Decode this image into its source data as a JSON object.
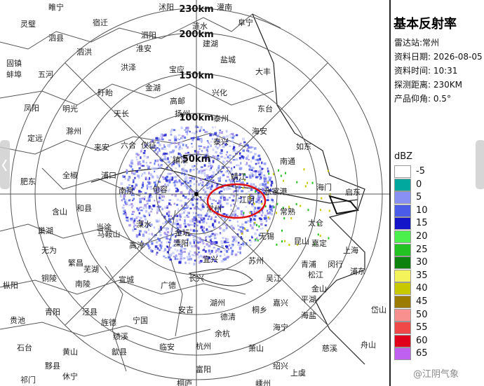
{
  "ring_labels": [
    "50km",
    "100km",
    "150km",
    "200km",
    "230km"
  ],
  "places": [
    "睢宁",
    "沭阳",
    "灌南",
    "灵璧",
    "宿迁",
    "泗阳",
    "涟水",
    "阜宁",
    "泗县",
    "泗洪",
    "淮安",
    "建湖",
    "盐城",
    "固镇",
    "蚌埠",
    "五河",
    "洪泽",
    "宝应",
    "大丰",
    "盱眙",
    "金湖",
    "兴化",
    "凤阳",
    "明光",
    "高邮",
    "东台",
    "天长",
    "扬州",
    "泰州",
    "海安",
    "滁州",
    "定远",
    "来安",
    "六合",
    "仪征",
    "泰兴",
    "如东",
    "镇江",
    "全椒",
    "浦口",
    "南通",
    "肥东",
    "靖江",
    "南京",
    "句容",
    "张家港",
    "海门",
    "启东",
    "江阴",
    "常州",
    "常熟",
    "和县",
    "含山",
    "当涂",
    "马鞍山",
    "溧水",
    "巢湖",
    "金坛",
    "太仓",
    "无锡",
    "嘉定",
    "昆山",
    "上海",
    "溧阳",
    "高淳",
    "无为",
    "繁昌",
    "苏州",
    "闵行",
    "青浦",
    "芜湖",
    "浦东",
    "松江",
    "宜兴",
    "长兴",
    "铜陵",
    "枞阳",
    "宣城",
    "南陵",
    "广德",
    "吴江",
    "金山",
    "平湖",
    "湖州",
    "嘉兴",
    "桐乡",
    "安吉",
    "泾县",
    "青阳",
    "岱山",
    "贵池",
    "宁国",
    "德清",
    "海盐",
    "旌德",
    "海宁",
    "余杭",
    "绩溪",
    "石台",
    "杭州",
    "临安",
    "萧山",
    "慈溪",
    "黄山",
    "歙县",
    "黟县",
    "富阳",
    "绍兴",
    "上虞",
    "休宁",
    "祁门",
    "桐庐",
    "嵊州",
    "舟山"
  ],
  "panel": {
    "title": "基本反射率",
    "station": "雷达站:常州",
    "date": "资料日期: 2026-08-05",
    "time": "资料时间: 10:31",
    "range": "探测距离: 230KM",
    "elevation": "产品仰角: 0.5°"
  },
  "legend": {
    "unit": "dBZ",
    "items": [
      {
        "value": -5,
        "color": "#ffffff"
      },
      {
        "value": 0,
        "color": "#00a89e"
      },
      {
        "value": 5,
        "color": "#8890f4"
      },
      {
        "value": 10,
        "color": "#4a5ce8"
      },
      {
        "value": 15,
        "color": "#1414c8"
      },
      {
        "value": 20,
        "color": "#4cf04c"
      },
      {
        "value": 25,
        "color": "#22c222"
      },
      {
        "value": 30,
        "color": "#0e820e"
      },
      {
        "value": 35,
        "color": "#f4f45a"
      },
      {
        "value": 40,
        "color": "#c8c800"
      },
      {
        "value": 45,
        "color": "#9c7c00"
      },
      {
        "value": 50,
        "color": "#f89090"
      },
      {
        "value": 55,
        "color": "#f04848"
      },
      {
        "value": 60,
        "color": "#e0001c"
      },
      {
        "value": 65,
        "color": "#c060f0"
      }
    ]
  },
  "watermark": "@江阴气象"
}
